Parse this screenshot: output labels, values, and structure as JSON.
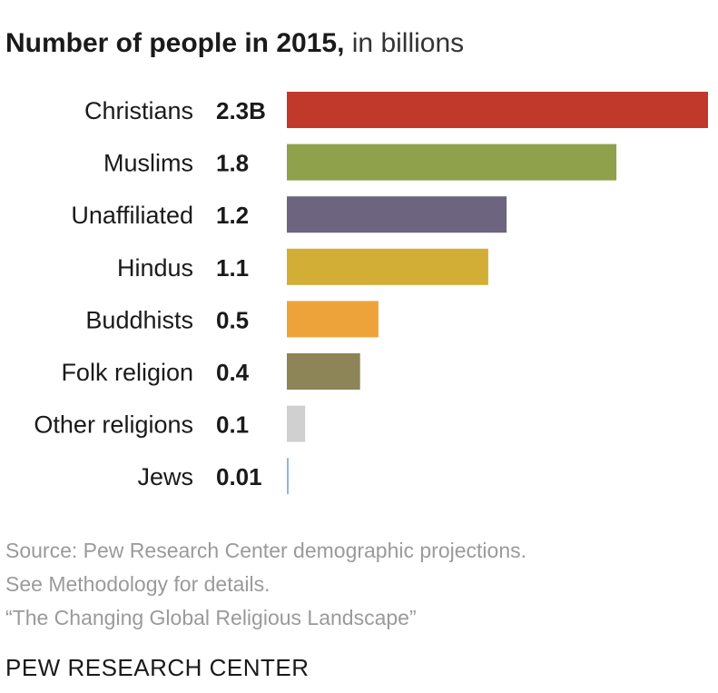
{
  "title": {
    "bold": "Number of people in 2015,",
    "light": "in billions"
  },
  "chart_data": {
    "type": "bar",
    "orientation": "horizontal",
    "categories": [
      "Christians",
      "Muslims",
      "Unaffiliated",
      "Hindus",
      "Buddhists",
      "Folk religion",
      "Other religions",
      "Jews"
    ],
    "values": [
      2.3,
      1.8,
      1.2,
      1.1,
      0.5,
      0.4,
      0.1,
      0.01
    ],
    "value_labels": [
      "2.3B",
      "1.8",
      "1.2",
      "1.1",
      "0.5",
      "0.4",
      "0.1",
      "0.01"
    ],
    "colors": [
      "#c0392b",
      "#8fa14a",
      "#6d6480",
      "#d3ae37",
      "#eea33a",
      "#8d8457",
      "#d0d0d0",
      "#8fb6de"
    ],
    "title": "Number of people in 2015, in billions",
    "xlabel": "",
    "ylabel": "",
    "xlim": [
      0,
      2.3
    ],
    "grid": false,
    "legend": "none"
  },
  "footer": {
    "line1": "Source: Pew Research Center demographic projections.",
    "line2": "See Methodology for details.",
    "line3": "“The Changing Global Religious Landscape”"
  },
  "brand": "PEW RESEARCH CENTER"
}
